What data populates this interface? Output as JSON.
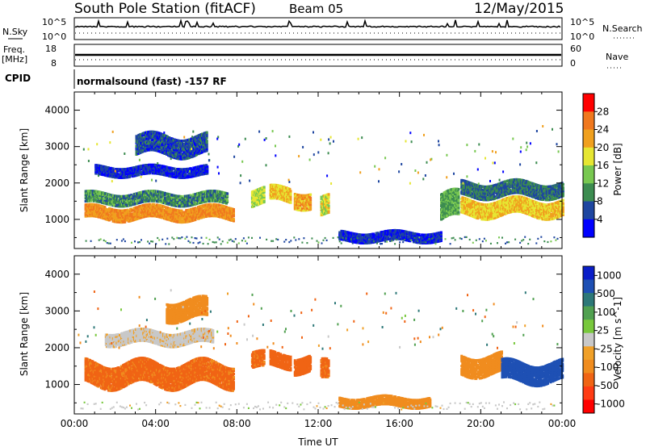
{
  "header": {
    "station": "South Pole Station (fitACF)",
    "beam": "Beam 05",
    "date": "12/May/2015"
  },
  "strip": {
    "nsky_label": "N.Sky",
    "nsky_top": "10^5",
    "nsky_bottom": "10^0",
    "freq_label": "Freq.",
    "freq_unit": "[MHz]",
    "freq_top": "18",
    "freq_bottom": "8",
    "cpid_label": "CPID",
    "cpid_text": "normalsound (fast) -157 RF",
    "nsearch_label": "N.Search",
    "nsearch_top": "10^5",
    "nsearch_bottom": "10^0",
    "nave_label": "Nave",
    "nave_top": "60",
    "nave_bottom": "0"
  },
  "chart_data": [
    {
      "type": "heatmap",
      "panel": "power",
      "ylabel": "Slant Range [km]",
      "yticks": [
        "1000",
        "2000",
        "3000",
        "4000"
      ],
      "ylim": [
        200,
        4500
      ],
      "xlim": [
        0,
        24
      ],
      "colorbar_label": "Power [dB]",
      "colorbar_ticks": [
        "4",
        "8",
        "12",
        "16",
        "20",
        "24",
        "28"
      ],
      "colorscale": [
        "#0000ff",
        "#1e46a0",
        "#3c8c50",
        "#78c850",
        "#e6e632",
        "#f0a01e",
        "#f0781e",
        "#ff0000"
      ],
      "regions": [
        {
          "t_start": 0.5,
          "t_end": 7.8,
          "range_center": 1150,
          "range_width": 350,
          "value": 26
        },
        {
          "t_start": 0.5,
          "t_end": 7.5,
          "range_center": 1550,
          "range_width": 300,
          "value": 12
        },
        {
          "t_start": 1.0,
          "t_end": 6.5,
          "range_center": 2300,
          "range_width": 250,
          "value": 6
        },
        {
          "t_start": 3.0,
          "t_end": 6.5,
          "range_center": 3000,
          "range_width": 500,
          "value": 8
        },
        {
          "t_start": 8.7,
          "t_end": 9.3,
          "range_center": 1600,
          "range_width": 450,
          "value": 18
        },
        {
          "t_start": 9.6,
          "t_end": 10.6,
          "range_center": 1650,
          "range_width": 400,
          "value": 22
        },
        {
          "t_start": 10.8,
          "t_end": 11.6,
          "range_center": 1550,
          "range_width": 450,
          "value": 24
        },
        {
          "t_start": 12.1,
          "t_end": 12.5,
          "range_center": 1300,
          "range_width": 500,
          "value": 20
        },
        {
          "t_start": 13.0,
          "t_end": 18.0,
          "range_center": 500,
          "range_width": 250,
          "value": 6
        },
        {
          "t_start": 18.0,
          "t_end": 18.9,
          "range_center": 1300,
          "range_width": 700,
          "value": 14
        },
        {
          "t_start": 19.0,
          "t_end": 24.0,
          "range_center": 1300,
          "range_width": 450,
          "value": 22
        },
        {
          "t_start": 19.0,
          "t_end": 24.0,
          "range_center": 1800,
          "range_width": 400,
          "value": 10
        }
      ]
    },
    {
      "type": "heatmap",
      "panel": "velocity",
      "ylabel": "Slant Range [km]",
      "xlabel": "Time UT",
      "xticks": [
        "00:00",
        "04:00",
        "08:00",
        "12:00",
        "16:00",
        "20:00",
        "00:00"
      ],
      "yticks": [
        "1000",
        "2000",
        "3000",
        "4000"
      ],
      "ylim": [
        200,
        4500
      ],
      "xlim": [
        0,
        24
      ],
      "colorbar_label": "Velocity [m s^-1]",
      "colorbar_ticks": [
        "1000",
        "500",
        "100",
        "25",
        "-25",
        "-100",
        "-500",
        "-1000"
      ],
      "colorscale": [
        "#0a1ec8",
        "#1e50b4",
        "#2d7878",
        "#50a050",
        "#78c83c",
        "#c8c8c8",
        "#f0a028",
        "#f08c1e",
        "#f06414",
        "#ff3c14",
        "#ff0000"
      ],
      "regions": [
        {
          "t_start": 0.5,
          "t_end": 7.8,
          "range_center": 1250,
          "range_width": 600,
          "value": -300
        },
        {
          "t_start": 1.5,
          "t_end": 6.8,
          "range_center": 2250,
          "range_width": 350,
          "value": -5
        },
        {
          "t_start": 4.5,
          "t_end": 6.5,
          "range_center": 3000,
          "range_width": 500,
          "value": -150
        },
        {
          "t_start": 8.7,
          "t_end": 9.3,
          "range_center": 1600,
          "range_width": 450,
          "value": -300
        },
        {
          "t_start": 9.6,
          "t_end": 10.6,
          "range_center": 1650,
          "range_width": 400,
          "value": -400
        },
        {
          "t_start": 10.8,
          "t_end": 11.6,
          "range_center": 1550,
          "range_width": 450,
          "value": -400
        },
        {
          "t_start": 12.1,
          "t_end": 12.5,
          "range_center": 1300,
          "range_width": 500,
          "value": -300
        },
        {
          "t_start": 13.0,
          "t_end": 17.5,
          "range_center": 500,
          "range_width": 250,
          "value": -200
        },
        {
          "t_start": 19.0,
          "t_end": 21.0,
          "range_center": 1500,
          "range_width": 500,
          "value": -200
        },
        {
          "t_start": 21.0,
          "t_end": 24.0,
          "range_center": 1300,
          "range_width": 500,
          "value": 700
        }
      ]
    }
  ]
}
